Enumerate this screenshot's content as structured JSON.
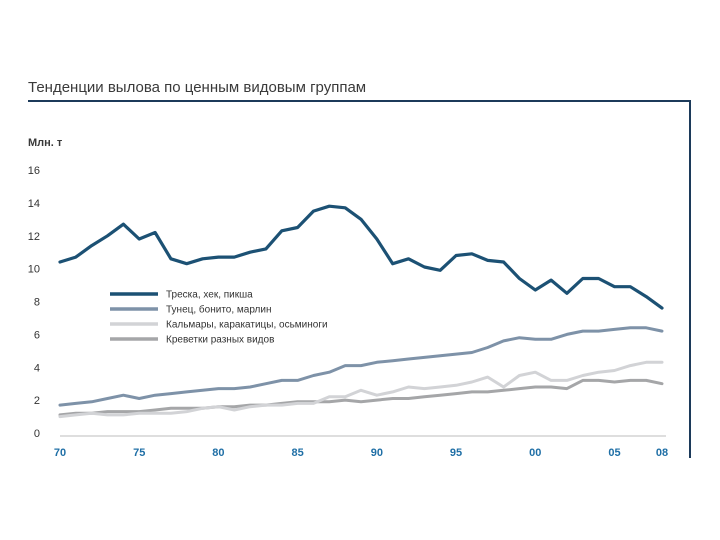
{
  "chart_data": {
    "type": "line",
    "title": "Тенденции вылова по ценным видовым группам",
    "ylabel": "Млн. т",
    "xlabel": "",
    "ylim": [
      0,
      16
    ],
    "xlim": [
      1970,
      2008
    ],
    "yticks": [
      0,
      2,
      4,
      6,
      8,
      10,
      12,
      14,
      16
    ],
    "xticks": [
      {
        "value": 1970,
        "label": "70"
      },
      {
        "value": 1975,
        "label": "75"
      },
      {
        "value": 1980,
        "label": "80"
      },
      {
        "value": 1985,
        "label": "85"
      },
      {
        "value": 1990,
        "label": "90"
      },
      {
        "value": 1995,
        "label": "95"
      },
      {
        "value": 2000,
        "label": "00"
      },
      {
        "value": 2005,
        "label": "05"
      },
      {
        "value": 2008,
        "label": "08"
      }
    ],
    "x": [
      1970,
      1971,
      1972,
      1973,
      1974,
      1975,
      1976,
      1977,
      1978,
      1979,
      1980,
      1981,
      1982,
      1983,
      1984,
      1985,
      1986,
      1987,
      1988,
      1989,
      1990,
      1991,
      1992,
      1993,
      1994,
      1995,
      1996,
      1997,
      1998,
      1999,
      2000,
      2001,
      2002,
      2003,
      2004,
      2005,
      2006,
      2007,
      2008
    ],
    "legend_position": "left",
    "series": [
      {
        "name": "Треска, хек, пикша",
        "color": "#1c5174",
        "width": 3.2,
        "values": [
          10.4,
          10.7,
          11.4,
          12.0,
          12.7,
          11.8,
          12.2,
          10.6,
          10.3,
          10.6,
          10.7,
          10.7,
          11.0,
          11.2,
          12.3,
          12.5,
          13.5,
          13.8,
          13.7,
          13.0,
          11.8,
          10.3,
          10.6,
          10.1,
          9.9,
          10.8,
          10.9,
          10.5,
          10.4,
          9.4,
          8.7,
          9.3,
          8.5,
          9.4,
          9.4,
          8.9,
          8.9,
          8.3,
          7.6
        ]
      },
      {
        "name": "Тунец, бонито, марлин",
        "color": "#7e92a8",
        "width": 3,
        "values": [
          1.7,
          1.8,
          1.9,
          2.1,
          2.3,
          2.1,
          2.3,
          2.4,
          2.5,
          2.6,
          2.7,
          2.7,
          2.8,
          3.0,
          3.2,
          3.2,
          3.5,
          3.7,
          4.1,
          4.1,
          4.3,
          4.4,
          4.5,
          4.6,
          4.7,
          4.8,
          4.9,
          5.2,
          5.6,
          5.8,
          5.7,
          5.7,
          6.0,
          6.2,
          6.2,
          6.3,
          6.4,
          6.4,
          6.2
        ]
      },
      {
        "name": "Кальмары, каракатицы, осьминоги",
        "color": "#d2d3d6",
        "width": 3,
        "values": [
          1.0,
          1.1,
          1.2,
          1.1,
          1.1,
          1.2,
          1.2,
          1.2,
          1.3,
          1.5,
          1.6,
          1.4,
          1.6,
          1.7,
          1.7,
          1.8,
          1.8,
          2.2,
          2.2,
          2.6,
          2.3,
          2.5,
          2.8,
          2.7,
          2.8,
          2.9,
          3.1,
          3.4,
          2.8,
          3.5,
          3.7,
          3.2,
          3.2,
          3.5,
          3.7,
          3.8,
          4.1,
          4.3,
          4.3
        ]
      },
      {
        "name": "Креветки разных видов",
        "color": "#a5a6a8",
        "width": 3,
        "values": [
          1.1,
          1.2,
          1.2,
          1.3,
          1.3,
          1.3,
          1.4,
          1.5,
          1.5,
          1.5,
          1.6,
          1.6,
          1.7,
          1.7,
          1.8,
          1.9,
          1.9,
          1.9,
          2.0,
          1.9,
          2.0,
          2.1,
          2.1,
          2.2,
          2.3,
          2.4,
          2.5,
          2.5,
          2.6,
          2.7,
          2.8,
          2.8,
          2.7,
          3.2,
          3.2,
          3.1,
          3.2,
          3.2,
          3.0
        ]
      }
    ]
  }
}
